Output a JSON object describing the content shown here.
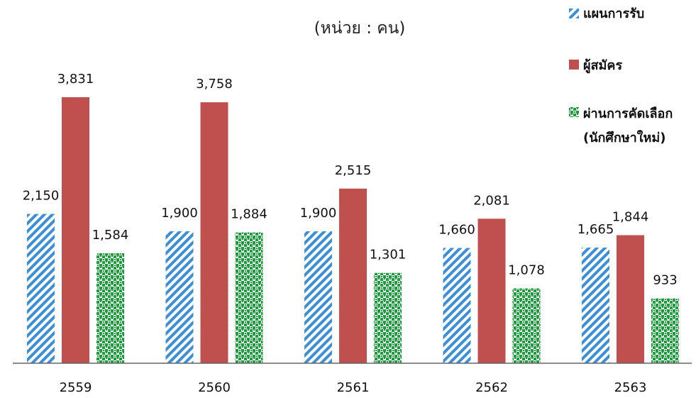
{
  "chart_data": {
    "type": "bar",
    "unit_label": "(หน่วย : คน)",
    "categories": [
      "2559",
      "2560",
      "2561",
      "2562",
      "2563"
    ],
    "series": [
      {
        "name": "แผนการรับ",
        "values": [
          2150,
          1900,
          1900,
          1660,
          1665
        ],
        "labels": [
          "2,150",
          "1,900",
          "1,900",
          "1,660",
          "1,665"
        ],
        "color": "#3a8fd8",
        "pattern": "diagonal-stripes"
      },
      {
        "name": "ผู้สมัคร",
        "values": [
          3831,
          3758,
          2515,
          2081,
          1844
        ],
        "labels": [
          "3,831",
          "3,758",
          "2,515",
          "2,081",
          "1,844"
        ],
        "color": "#c0504d",
        "pattern": "solid"
      },
      {
        "name": "ผ่านการคัดเลือก",
        "name_line2": "(นักศึกษาใหม่)",
        "values": [
          1584,
          1884,
          1301,
          1078,
          933
        ],
        "labels": [
          "1,584",
          "1,884",
          "1,301",
          "1,078",
          "933"
        ],
        "color": "#1a9e3a",
        "pattern": "checker"
      }
    ],
    "ylim": [
      0,
      4300
    ],
    "grid": false,
    "legend_position": "top-right"
  }
}
